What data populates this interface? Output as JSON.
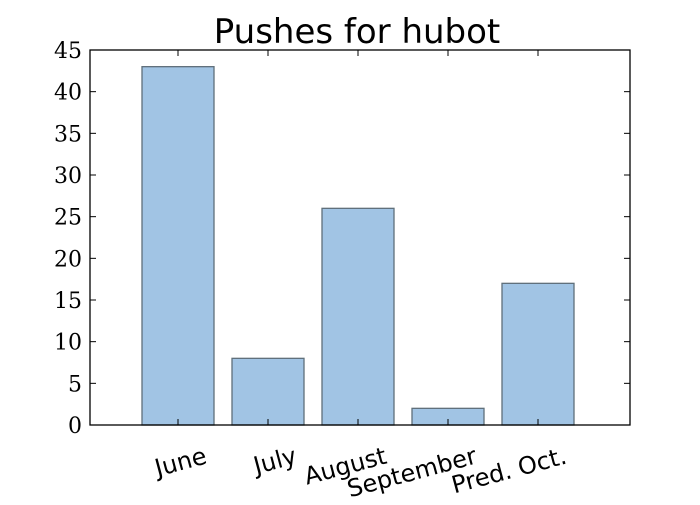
{
  "chart_data": {
    "type": "bar",
    "title": "Pushes for hubot",
    "xlabel": "",
    "ylabel": "",
    "categories": [
      "June",
      "July",
      "August",
      "September",
      "Pred. Oct."
    ],
    "values": [
      43,
      8,
      26,
      2,
      17
    ],
    "ylim": [
      0,
      45
    ],
    "yticks": [
      "0",
      "5",
      "10",
      "15",
      "20",
      "25",
      "30",
      "35",
      "40",
      "45"
    ],
    "grid": false,
    "legend": "none",
    "bar_color": "#a1c4e4",
    "bar_edge_color": "#5f6f7a"
  }
}
